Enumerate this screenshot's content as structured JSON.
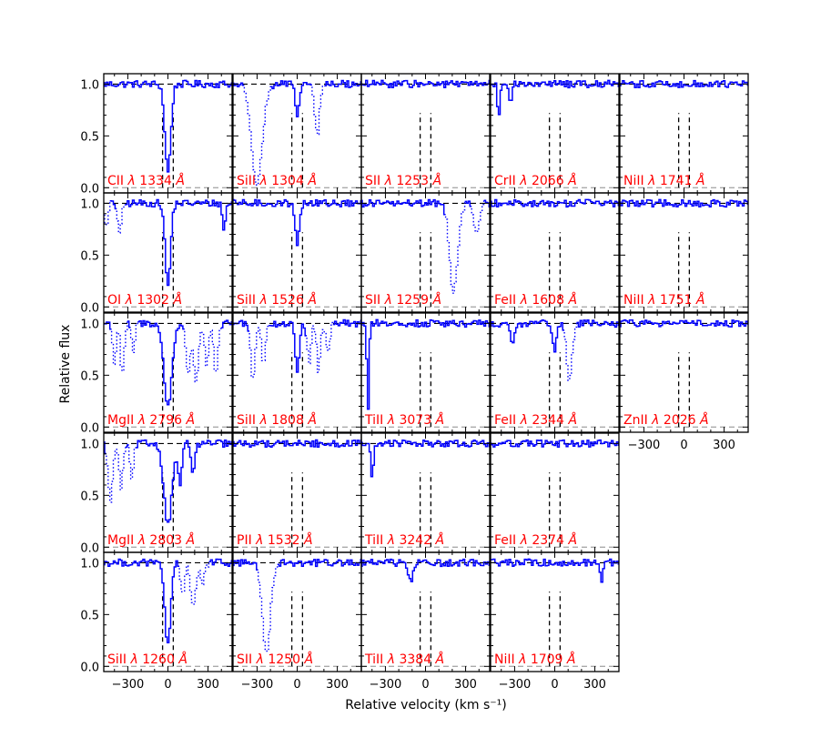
{
  "chart_data": {
    "type": "line",
    "figure": "multi-panel absorption line velocity profiles",
    "xlabel": "Relative velocity (km s⁻¹)",
    "ylabel": "Relative flux",
    "xlim": [
      -480,
      480
    ],
    "ylim": [
      -0.05,
      1.1
    ],
    "xticks": [
      -300,
      0,
      300
    ],
    "xtick_labels": [
      "−300",
      "0",
      "300"
    ],
    "yticks": [
      0.0,
      0.5,
      1.0
    ],
    "ytick_labels": [
      "0.0",
      "0.5",
      "1.0"
    ],
    "velocity_window": [
      -40,
      40
    ],
    "colors": {
      "flux": "#0000ff",
      "label": "#ff0000",
      "markers": "#000000",
      "zero": "#aaaaaa"
    },
    "panels": [
      {
        "col": 0,
        "row": 0,
        "ion": "CII",
        "wavelength": "1334",
        "absorption": [
          {
            "v": 0,
            "depth": 0.85,
            "width": 22,
            "style": "solid"
          }
        ]
      },
      {
        "col": 0,
        "row": 1,
        "ion": "OI",
        "wavelength": "1302",
        "absorption": [
          {
            "v": 0,
            "depth": 0.8,
            "width": 20,
            "style": "solid"
          },
          {
            "v": 420,
            "depth": 0.25,
            "width": 12,
            "style": "solid"
          },
          {
            "v": -360,
            "depth": 0.3,
            "width": 14,
            "style": "dotted"
          },
          {
            "v": -460,
            "depth": 0.25,
            "width": 12,
            "style": "dotted"
          }
        ]
      },
      {
        "col": 0,
        "row": 2,
        "ion": "MgII",
        "wavelength": "2796",
        "absorption": [
          {
            "v": 0,
            "depth": 0.8,
            "width": 30,
            "style": "solid"
          },
          {
            "v": -400,
            "depth": 0.4,
            "width": 12,
            "style": "dotted"
          },
          {
            "v": -340,
            "depth": 0.5,
            "width": 14,
            "style": "dotted"
          },
          {
            "v": -260,
            "depth": 0.3,
            "width": 12,
            "style": "dotted"
          },
          {
            "v": 150,
            "depth": 0.5,
            "width": 16,
            "style": "dotted"
          },
          {
            "v": 210,
            "depth": 0.55,
            "width": 18,
            "style": "dotted"
          },
          {
            "v": 290,
            "depth": 0.4,
            "width": 16,
            "style": "dotted"
          },
          {
            "v": 360,
            "depth": 0.5,
            "width": 16,
            "style": "dotted"
          }
        ]
      },
      {
        "col": 0,
        "row": 3,
        "ion": "MgII",
        "wavelength": "2803",
        "absorption": [
          {
            "v": 0,
            "depth": 0.78,
            "width": 30,
            "style": "solid"
          },
          {
            "v": 90,
            "depth": 0.4,
            "width": 14,
            "style": "solid"
          },
          {
            "v": 190,
            "depth": 0.3,
            "width": 14,
            "style": "solid"
          },
          {
            "v": -430,
            "depth": 0.55,
            "width": 18,
            "style": "dotted"
          },
          {
            "v": -350,
            "depth": 0.45,
            "width": 14,
            "style": "dotted"
          },
          {
            "v": -270,
            "depth": 0.35,
            "width": 14,
            "style": "dotted"
          }
        ]
      },
      {
        "col": 0,
        "row": 4,
        "ion": "SiII",
        "wavelength": "1260",
        "absorption": [
          {
            "v": 0,
            "depth": 0.8,
            "width": 22,
            "style": "solid"
          },
          {
            "v": 110,
            "depth": 0.3,
            "width": 16,
            "style": "dotted"
          },
          {
            "v": 190,
            "depth": 0.4,
            "width": 20,
            "style": "dotted"
          },
          {
            "v": 260,
            "depth": 0.2,
            "width": 16,
            "style": "dotted"
          }
        ]
      },
      {
        "col": 1,
        "row": 0,
        "ion": "SiII",
        "wavelength": "1304",
        "absorption": [
          {
            "v": 0,
            "depth": 0.35,
            "width": 14,
            "style": "solid"
          },
          {
            "v": -300,
            "depth": 0.95,
            "width": 40,
            "style": "dotted"
          },
          {
            "v": 150,
            "depth": 0.5,
            "width": 18,
            "style": "dotted"
          }
        ]
      },
      {
        "col": 1,
        "row": 1,
        "ion": "SiII",
        "wavelength": "1526",
        "absorption": [
          {
            "v": 0,
            "depth": 0.38,
            "width": 16,
            "style": "solid"
          }
        ]
      },
      {
        "col": 1,
        "row": 2,
        "ion": "SiII",
        "wavelength": "1808",
        "absorption": [
          {
            "v": 0,
            "depth": 0.45,
            "width": 16,
            "style": "solid"
          },
          {
            "v": -330,
            "depth": 0.55,
            "width": 16,
            "style": "dotted"
          },
          {
            "v": -250,
            "depth": 0.4,
            "width": 14,
            "style": "dotted"
          },
          {
            "v": 90,
            "depth": 0.4,
            "width": 14,
            "style": "dotted"
          },
          {
            "v": 160,
            "depth": 0.45,
            "width": 14,
            "style": "dotted"
          },
          {
            "v": 230,
            "depth": 0.3,
            "width": 14,
            "style": "dotted"
          }
        ]
      },
      {
        "col": 1,
        "row": 3,
        "ion": "PII",
        "wavelength": "1532",
        "absorption": []
      },
      {
        "col": 1,
        "row": 4,
        "ion": "SII",
        "wavelength": "1250",
        "absorption": [
          {
            "v": -230,
            "depth": 0.85,
            "width": 30,
            "style": "dotted"
          }
        ]
      },
      {
        "col": 2,
        "row": 0,
        "ion": "SII",
        "wavelength": "1253",
        "absorption": []
      },
      {
        "col": 2,
        "row": 1,
        "ion": "SII",
        "wavelength": "1259",
        "absorption": [
          {
            "v": 210,
            "depth": 0.85,
            "width": 30,
            "style": "dotted"
          },
          {
            "v": 380,
            "depth": 0.3,
            "width": 20,
            "style": "dotted"
          }
        ]
      },
      {
        "col": 2,
        "row": 2,
        "ion": "TiII",
        "wavelength": "3073",
        "absorption": [
          {
            "v": -430,
            "depth": 0.85,
            "width": 8,
            "style": "solid"
          }
        ]
      },
      {
        "col": 2,
        "row": 3,
        "ion": "TiII",
        "wavelength": "3242",
        "absorption": [
          {
            "v": -400,
            "depth": 0.35,
            "width": 10,
            "style": "solid"
          }
        ]
      },
      {
        "col": 2,
        "row": 4,
        "ion": "TiII",
        "wavelength": "3384",
        "absorption": [
          {
            "v": -110,
            "depth": 0.2,
            "width": 16,
            "style": "solid"
          }
        ]
      },
      {
        "col": 3,
        "row": 0,
        "ion": "CrII",
        "wavelength": "2066",
        "absorption": [
          {
            "v": -420,
            "depth": 0.4,
            "width": 8,
            "style": "solid"
          },
          {
            "v": -330,
            "depth": 0.25,
            "width": 8,
            "style": "solid"
          }
        ]
      },
      {
        "col": 3,
        "row": 1,
        "ion": "FeII",
        "wavelength": "1608",
        "absorption": []
      },
      {
        "col": 3,
        "row": 2,
        "ion": "FeII",
        "wavelength": "2344",
        "absorption": [
          {
            "v": -320,
            "depth": 0.2,
            "width": 14,
            "style": "solid"
          },
          {
            "v": 0,
            "depth": 0.25,
            "width": 16,
            "style": "solid"
          },
          {
            "v": 110,
            "depth": 0.55,
            "width": 20,
            "style": "dotted"
          }
        ]
      },
      {
        "col": 3,
        "row": 3,
        "ion": "FeII",
        "wavelength": "2374",
        "absorption": []
      },
      {
        "col": 3,
        "row": 4,
        "ion": "NiII",
        "wavelength": "1709",
        "absorption": [
          {
            "v": 350,
            "depth": 0.2,
            "width": 10,
            "style": "solid"
          }
        ]
      },
      {
        "col": 4,
        "row": 0,
        "ion": "NiII",
        "wavelength": "1741",
        "absorption": []
      },
      {
        "col": 4,
        "row": 1,
        "ion": "NiII",
        "wavelength": "1751",
        "absorption": []
      },
      {
        "col": 4,
        "row": 2,
        "ion": "ZnII",
        "wavelength": "2026",
        "absorption": []
      }
    ]
  }
}
